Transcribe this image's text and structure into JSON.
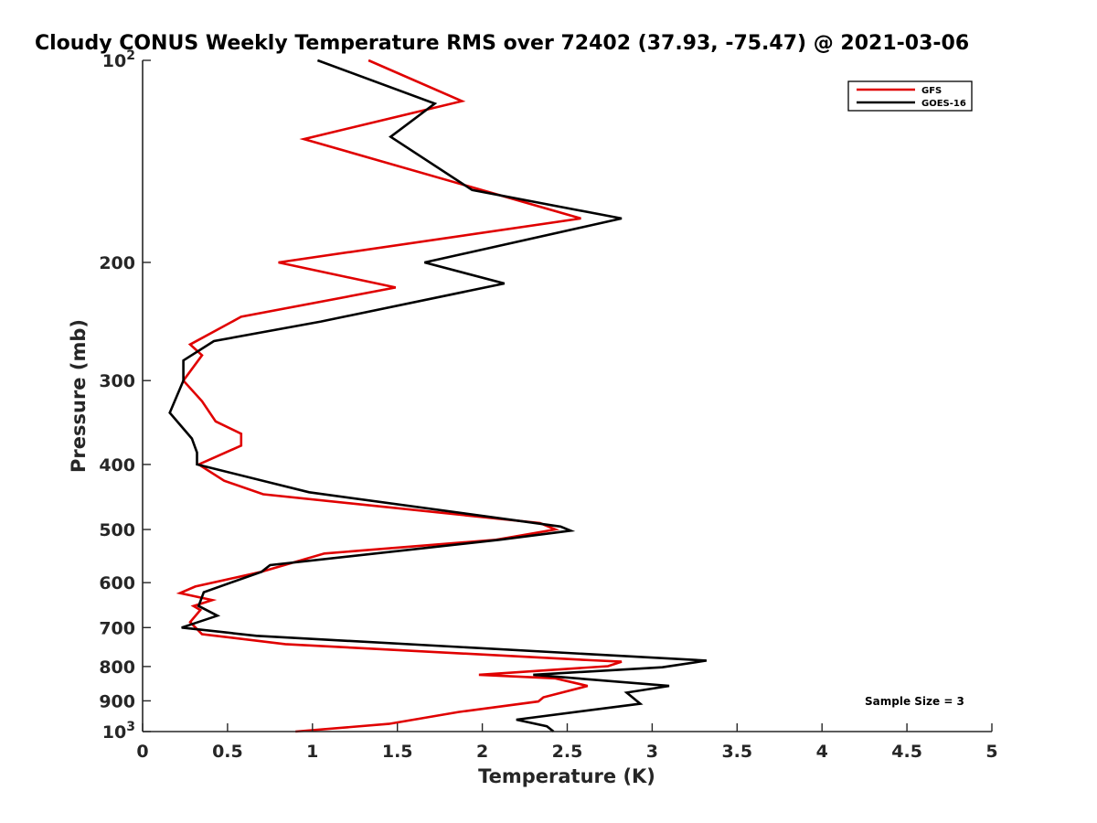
{
  "chart_data": {
    "type": "line",
    "title": "Cloudy CONUS Weekly Temperature RMS over 72402 (37.93, -75.47) @ 2021-03-06",
    "xlabel": "Temperature (K)",
    "ylabel": "Pressure (mb)",
    "xlim": [
      0,
      5
    ],
    "ylim": [
      100,
      1000
    ],
    "y_scale": "log",
    "y_reversed": true,
    "grid": false,
    "legend_position": "top-right",
    "x_ticks": [
      0,
      0.5,
      1,
      1.5,
      2,
      2.5,
      3,
      3.5,
      4,
      4.5,
      5
    ],
    "x_tick_labels": [
      "0",
      "0.5",
      "1",
      "1.5",
      "2",
      "2.5",
      "3",
      "3.5",
      "4",
      "4.5",
      "5"
    ],
    "y_ticks": [
      100,
      200,
      300,
      400,
      500,
      600,
      700,
      800,
      900,
      1000
    ],
    "y_tick_labels": [
      {
        "base": "10",
        "exp": "2"
      },
      {
        "base": "200",
        "exp": ""
      },
      {
        "base": "300",
        "exp": ""
      },
      {
        "base": "400",
        "exp": ""
      },
      {
        "base": "500",
        "exp": ""
      },
      {
        "base": "600",
        "exp": ""
      },
      {
        "base": "700",
        "exp": ""
      },
      {
        "base": "800",
        "exp": ""
      },
      {
        "base": "900",
        "exp": ""
      },
      {
        "base": "10",
        "exp": "3"
      }
    ],
    "annotation": "Sample Size = 3",
    "series": [
      {
        "name": "GFS",
        "color": "#e00000",
        "points": [
          [
            1.33,
            100
          ],
          [
            1.88,
            115
          ],
          [
            0.95,
            131
          ],
          [
            2.58,
            172
          ],
          [
            0.8,
            200
          ],
          [
            1.49,
            218
          ],
          [
            0.58,
            241
          ],
          [
            0.28,
            265
          ],
          [
            0.35,
            275
          ],
          [
            0.24,
            300
          ],
          [
            0.35,
            322
          ],
          [
            0.43,
            345
          ],
          [
            0.58,
            360
          ],
          [
            0.58,
            375
          ],
          [
            0.33,
            400
          ],
          [
            0.48,
            423
          ],
          [
            0.71,
            443
          ],
          [
            2.34,
            489
          ],
          [
            2.43,
            500
          ],
          [
            2.08,
            518
          ],
          [
            1.07,
            543
          ],
          [
            0.7,
            578
          ],
          [
            0.31,
            608
          ],
          [
            0.22,
            622
          ],
          [
            0.41,
            637
          ],
          [
            0.3,
            650
          ],
          [
            0.34,
            659
          ],
          [
            0.28,
            687
          ],
          [
            0.35,
            716
          ],
          [
            0.84,
            741
          ],
          [
            2.64,
            783
          ],
          [
            2.82,
            787
          ],
          [
            2.74,
            799
          ],
          [
            1.98,
            823
          ],
          [
            2.43,
            833
          ],
          [
            2.62,
            855
          ],
          [
            2.36,
            889
          ],
          [
            2.33,
            902
          ],
          [
            1.86,
            935
          ],
          [
            1.45,
            974
          ],
          [
            0.9,
            1000
          ]
        ]
      },
      {
        "name": "GOES-16",
        "color": "#000000",
        "points": [
          [
            1.03,
            100
          ],
          [
            1.72,
            116
          ],
          [
            1.46,
            130
          ],
          [
            1.94,
            156
          ],
          [
            2.82,
            172
          ],
          [
            1.66,
            200
          ],
          [
            2.13,
            215
          ],
          [
            1.05,
            245
          ],
          [
            0.42,
            262
          ],
          [
            0.24,
            280
          ],
          [
            0.24,
            300
          ],
          [
            0.16,
            335
          ],
          [
            0.29,
            366
          ],
          [
            0.32,
            384
          ],
          [
            0.32,
            400
          ],
          [
            0.74,
            425
          ],
          [
            0.98,
            440
          ],
          [
            2.46,
            495
          ],
          [
            2.52,
            502
          ],
          [
            2.1,
            518
          ],
          [
            0.75,
            565
          ],
          [
            0.7,
            578
          ],
          [
            0.36,
            620
          ],
          [
            0.33,
            650
          ],
          [
            0.44,
            672
          ],
          [
            0.23,
            700
          ],
          [
            0.67,
            720
          ],
          [
            3.32,
            784
          ],
          [
            3.06,
            802
          ],
          [
            2.3,
            823
          ],
          [
            3.1,
            855
          ],
          [
            2.85,
            875
          ],
          [
            2.93,
            909
          ],
          [
            2.2,
            960
          ],
          [
            2.38,
            982
          ],
          [
            2.42,
            1000
          ]
        ]
      }
    ]
  }
}
